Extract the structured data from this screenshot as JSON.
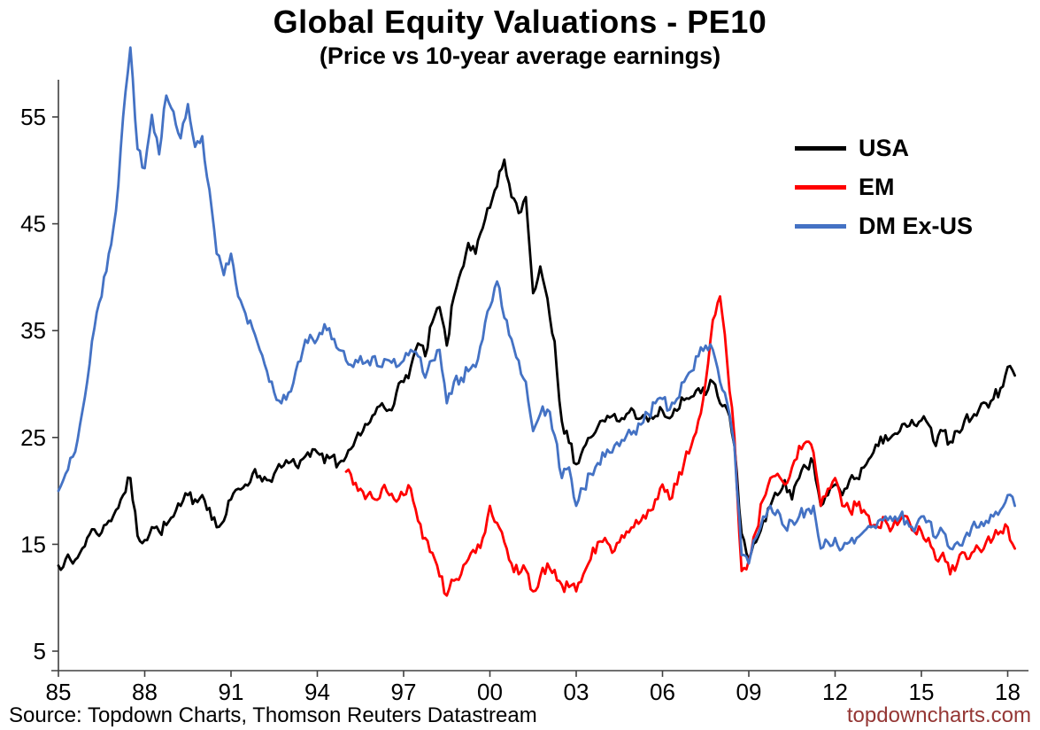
{
  "footer": {
    "source": "Source: Topdown Charts, Thomson Reuters Datastream",
    "watermark": "topdowncharts.com"
  },
  "chart_data": {
    "type": "line",
    "title": "Global Equity Valuations - PE10",
    "subtitle": "(Price vs 10-year average earnings)",
    "xlabel": "",
    "ylabel": "",
    "grid": false,
    "legend_position": "upper-right-inside",
    "axis_color": "#404040",
    "x_ticks": [
      "85",
      "88",
      "91",
      "94",
      "97",
      "00",
      "03",
      "06",
      "09",
      "12",
      "15",
      "18"
    ],
    "x_tick_years": [
      1985,
      1988,
      1991,
      1994,
      1997,
      2000,
      2003,
      2006,
      2009,
      2012,
      2015,
      2018
    ],
    "y_ticks": [
      5,
      15,
      25,
      35,
      45,
      55
    ],
    "xlim": [
      1985,
      2018.3
    ],
    "ylim": [
      3,
      63
    ],
    "series": [
      {
        "name": "USA",
        "color": "#000000",
        "x_start": 1985.0,
        "x_step": 0.25,
        "values": [
          13.0,
          13.6,
          13.2,
          14.2,
          15.6,
          16.4,
          16.1,
          17.2,
          18.2,
          19.6,
          21.2,
          15.8,
          15.4,
          16.6,
          16.2,
          16.8,
          17.6,
          18.6,
          19.6,
          19.2,
          19.6,
          18.4,
          16.6,
          17.2,
          19.2,
          20.2,
          20.6,
          21.6,
          21.4,
          21.0,
          21.6,
          22.2,
          22.6,
          22.4,
          23.0,
          23.2,
          23.6,
          22.6,
          23.2,
          22.6,
          23.2,
          24.2,
          25.2,
          26.2,
          27.2,
          28.2,
          27.6,
          29.2,
          30.2,
          31.6,
          33.8,
          32.6,
          35.8,
          37.2,
          33.6,
          38.2,
          40.6,
          43.2,
          42.2,
          44.6,
          46.5,
          48.5,
          51.0,
          47.5,
          46.0,
          47.5,
          38.5,
          41.0,
          38.0,
          34.0,
          26.5,
          24.5,
          22.5,
          24.0,
          25.0,
          26.0,
          26.5,
          27.0,
          26.5,
          27.2,
          27.5,
          26.8,
          26.5,
          27.0,
          27.5,
          26.8,
          27.5,
          28.5,
          28.8,
          29.6,
          29.0,
          30.2,
          28.2,
          27.6,
          24.2,
          16.0,
          13.5,
          15.2,
          17.2,
          18.6,
          19.6,
          21.0,
          19.2,
          21.2,
          22.2,
          22.6,
          18.6,
          19.6,
          20.6,
          19.6,
          21.0,
          21.2,
          22.2,
          23.2,
          24.2,
          25.2,
          25.2,
          25.6,
          26.0,
          26.2,
          26.6,
          26.2,
          24.2,
          25.6,
          24.6,
          25.6,
          26.6,
          26.8,
          27.6,
          28.2,
          28.6,
          29.6,
          31.6,
          30.8
        ]
      },
      {
        "name": "EM",
        "color": "#FF0000",
        "x_start": 1995.0,
        "x_step": 0.25,
        "values": [
          21.8,
          20.6,
          20.2,
          19.6,
          19.2,
          20.2,
          19.6,
          19.0,
          19.6,
          20.2,
          17.2,
          15.6,
          14.2,
          12.0,
          10.2,
          11.6,
          12.2,
          13.6,
          14.2,
          15.6,
          18.6,
          17.0,
          15.2,
          13.2,
          12.2,
          12.6,
          10.6,
          12.0,
          13.2,
          12.6,
          11.2,
          11.0,
          10.6,
          12.2,
          13.6,
          15.2,
          15.6,
          14.2,
          15.2,
          16.2,
          16.6,
          17.2,
          18.2,
          19.2,
          20.6,
          19.2,
          20.6,
          22.6,
          24.2,
          26.6,
          30.2,
          36.0,
          38.2,
          32.0,
          25.0,
          12.5,
          13.5,
          16.2,
          19.2,
          21.2,
          21.6,
          20.6,
          22.2,
          24.2,
          24.6,
          23.6,
          18.6,
          20.2,
          21.2,
          18.6,
          18.2,
          18.6,
          18.2,
          16.6,
          16.6,
          17.2,
          16.6,
          17.2,
          17.6,
          16.2,
          16.2,
          15.6,
          13.6,
          14.2,
          12.2,
          13.2,
          14.2,
          14.2,
          14.6,
          15.2,
          15.6,
          16.2,
          16.6,
          14.6
        ]
      },
      {
        "name": "DM Ex-US",
        "color": "#4472C4",
        "x_start": 1985.0,
        "x_step": 0.25,
        "values": [
          20.0,
          21.6,
          23.2,
          26.2,
          30.2,
          35.2,
          38.2,
          42.2,
          46.2,
          55.0,
          61.5,
          52.0,
          50.2,
          55.2,
          51.5,
          57.0,
          55.5,
          53.0,
          56.2,
          52.2,
          53.2,
          48.2,
          42.2,
          40.2,
          42.2,
          38.2,
          36.6,
          35.2,
          33.2,
          31.2,
          29.2,
          28.2,
          29.2,
          31.2,
          33.2,
          34.6,
          34.2,
          35.6,
          34.2,
          33.2,
          32.2,
          31.6,
          32.6,
          32.2,
          32.6,
          31.6,
          32.2,
          31.6,
          32.2,
          33.2,
          32.6,
          30.6,
          32.2,
          33.2,
          28.2,
          30.2,
          30.6,
          31.2,
          31.6,
          34.2,
          37.2,
          39.6,
          36.2,
          34.2,
          32.2,
          30.2,
          25.6,
          27.2,
          27.6,
          25.2,
          21.2,
          22.2,
          18.6,
          20.2,
          21.6,
          22.6,
          23.2,
          23.6,
          24.2,
          25.2,
          25.6,
          26.2,
          27.2,
          28.2,
          28.6,
          27.6,
          28.6,
          30.2,
          31.2,
          32.6,
          33.6,
          33.2,
          30.2,
          28.2,
          24.2,
          14.0,
          13.2,
          15.6,
          17.6,
          18.6,
          18.2,
          16.6,
          17.2,
          17.6,
          18.2,
          18.6,
          14.6,
          15.2,
          15.6,
          14.6,
          15.2,
          15.6,
          16.2,
          16.6,
          17.2,
          17.6,
          17.2,
          17.6,
          17.2,
          16.2,
          17.6,
          17.2,
          15.6,
          16.2,
          14.6,
          15.2,
          15.6,
          16.6,
          16.6,
          17.2,
          17.6,
          18.2,
          19.6,
          18.6
        ]
      }
    ]
  }
}
